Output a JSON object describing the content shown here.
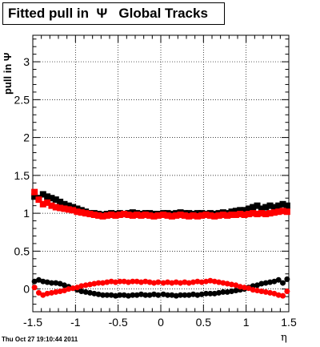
{
  "title": "Fitted pull in  Ψ   Global Tracks",
  "timestamp": "Thu Oct 27 19:10:44 2011",
  "chart_data": {
    "type": "scatter",
    "xlabel": "η",
    "ylabel": "pull in Ψ",
    "xlim": [
      -1.5,
      1.5
    ],
    "ylim": [
      -0.3,
      3.35
    ],
    "xticks": [
      "-1.5",
      "-1",
      "-0.5",
      "0",
      "0.5",
      "1",
      "1.5"
    ],
    "yticks": [
      "0",
      "0.5",
      "1",
      "1.5",
      "2",
      "2.5",
      "3"
    ],
    "grid": true,
    "series": [
      {
        "marker": "square",
        "color": "#000000",
        "x": [
          -1.48,
          -1.43,
          -1.38,
          -1.33,
          -1.28,
          -1.23,
          -1.18,
          -1.13,
          -1.08,
          -1.03,
          -0.98,
          -0.93,
          -0.88,
          -0.83,
          -0.78,
          -0.73,
          -0.68,
          -0.63,
          -0.58,
          -0.53,
          -0.48,
          -0.43,
          -0.38,
          -0.33,
          -0.28,
          -0.23,
          -0.18,
          -0.13,
          -0.08,
          -0.03,
          0.03,
          0.08,
          0.13,
          0.18,
          0.23,
          0.28,
          0.33,
          0.38,
          0.43,
          0.48,
          0.53,
          0.58,
          0.63,
          0.68,
          0.73,
          0.78,
          0.83,
          0.88,
          0.93,
          0.98,
          1.03,
          1.08,
          1.13,
          1.18,
          1.23,
          1.28,
          1.33,
          1.38,
          1.43,
          1.48
        ],
        "y": [
          1.22,
          1.2,
          1.25,
          1.22,
          1.2,
          1.18,
          1.15,
          1.12,
          1.1,
          1.08,
          1.06,
          1.04,
          1.02,
          1.0,
          1.0,
          0.99,
          0.98,
          0.99,
          1.0,
          0.99,
          1.0,
          0.99,
          1.0,
          1.01,
          1.0,
          0.99,
          1.0,
          1.0,
          0.99,
          0.99,
          1.0,
          1.0,
          0.99,
          1.0,
          1.01,
          1.0,
          1.0,
          0.99,
          1.0,
          1.0,
          0.99,
          1.0,
          0.99,
          1.0,
          1.01,
          1.0,
          1.02,
          1.03,
          1.04,
          1.04,
          1.06,
          1.08,
          1.1,
          1.06,
          1.08,
          1.1,
          1.08,
          1.1,
          1.12,
          1.1
        ]
      },
      {
        "marker": "square",
        "color": "#ff0000",
        "x": [
          -1.48,
          -1.43,
          -1.38,
          -1.33,
          -1.28,
          -1.23,
          -1.18,
          -1.13,
          -1.08,
          -1.03,
          -0.98,
          -0.93,
          -0.88,
          -0.83,
          -0.78,
          -0.73,
          -0.68,
          -0.63,
          -0.58,
          -0.53,
          -0.48,
          -0.43,
          -0.38,
          -0.33,
          -0.28,
          -0.23,
          -0.18,
          -0.13,
          -0.08,
          -0.03,
          0.03,
          0.08,
          0.13,
          0.18,
          0.23,
          0.28,
          0.33,
          0.38,
          0.43,
          0.48,
          0.53,
          0.58,
          0.63,
          0.68,
          0.73,
          0.78,
          0.83,
          0.88,
          0.93,
          0.98,
          1.03,
          1.08,
          1.13,
          1.18,
          1.23,
          1.28,
          1.33,
          1.38,
          1.43,
          1.48
        ],
        "y": [
          1.28,
          1.18,
          1.12,
          1.14,
          1.1,
          1.08,
          1.07,
          1.06,
          1.05,
          1.04,
          1.02,
          1.01,
          1.0,
          0.99,
          0.98,
          0.97,
          0.96,
          0.97,
          0.98,
          0.97,
          0.98,
          0.99,
          0.98,
          0.97,
          0.98,
          0.97,
          0.98,
          0.97,
          0.96,
          0.97,
          0.98,
          0.97,
          0.96,
          0.97,
          0.98,
          0.97,
          0.96,
          0.97,
          0.96,
          0.97,
          0.98,
          0.97,
          0.96,
          0.97,
          0.98,
          0.97,
          0.98,
          0.98,
          0.99,
          0.98,
          0.99,
          1.0,
          0.99,
          1.0,
          0.99,
          1.0,
          1.01,
          1.02,
          1.03,
          1.02
        ]
      },
      {
        "marker": "circle",
        "color": "#000000",
        "x": [
          -1.48,
          -1.43,
          -1.38,
          -1.33,
          -1.28,
          -1.23,
          -1.18,
          -1.13,
          -1.08,
          -1.03,
          -0.98,
          -0.93,
          -0.88,
          -0.83,
          -0.78,
          -0.73,
          -0.68,
          -0.63,
          -0.58,
          -0.53,
          -0.48,
          -0.43,
          -0.38,
          -0.33,
          -0.28,
          -0.23,
          -0.18,
          -0.13,
          -0.08,
          -0.03,
          0.03,
          0.08,
          0.13,
          0.18,
          0.23,
          0.28,
          0.33,
          0.38,
          0.43,
          0.48,
          0.53,
          0.58,
          0.63,
          0.68,
          0.73,
          0.78,
          0.83,
          0.88,
          0.93,
          0.98,
          1.03,
          1.08,
          1.13,
          1.18,
          1.23,
          1.28,
          1.33,
          1.38,
          1.43,
          1.48
        ],
        "y": [
          0.1,
          0.12,
          0.1,
          0.09,
          0.08,
          0.08,
          0.07,
          0.05,
          0.03,
          0.01,
          -0.01,
          -0.03,
          -0.04,
          -0.05,
          -0.06,
          -0.07,
          -0.08,
          -0.08,
          -0.08,
          -0.09,
          -0.08,
          -0.08,
          -0.09,
          -0.08,
          -0.08,
          -0.07,
          -0.08,
          -0.08,
          -0.07,
          -0.08,
          -0.07,
          -0.08,
          -0.08,
          -0.09,
          -0.08,
          -0.08,
          -0.08,
          -0.07,
          -0.08,
          -0.07,
          -0.06,
          -0.06,
          -0.06,
          -0.05,
          -0.04,
          -0.04,
          -0.03,
          -0.02,
          -0.01,
          0.0,
          0.02,
          0.04,
          0.05,
          0.07,
          0.08,
          0.09,
          0.1,
          0.12,
          0.08,
          0.13
        ]
      },
      {
        "marker": "circle",
        "color": "#ff0000",
        "x": [
          -1.48,
          -1.43,
          -1.38,
          -1.33,
          -1.28,
          -1.23,
          -1.18,
          -1.13,
          -1.08,
          -1.03,
          -0.98,
          -0.93,
          -0.88,
          -0.83,
          -0.78,
          -0.73,
          -0.68,
          -0.63,
          -0.58,
          -0.53,
          -0.48,
          -0.43,
          -0.38,
          -0.33,
          -0.28,
          -0.23,
          -0.18,
          -0.13,
          -0.08,
          -0.03,
          0.03,
          0.08,
          0.13,
          0.18,
          0.23,
          0.28,
          0.33,
          0.38,
          0.43,
          0.48,
          0.53,
          0.58,
          0.63,
          0.68,
          0.73,
          0.78,
          0.83,
          0.88,
          0.93,
          0.98,
          1.03,
          1.08,
          1.13,
          1.18,
          1.23,
          1.28,
          1.33,
          1.38,
          1.43,
          1.48
        ],
        "y": [
          0.02,
          -0.05,
          -0.08,
          -0.06,
          -0.05,
          -0.04,
          -0.03,
          -0.02,
          0.0,
          0.01,
          0.02,
          0.04,
          0.05,
          0.06,
          0.07,
          0.08,
          0.08,
          0.09,
          0.1,
          0.09,
          0.1,
          0.1,
          0.09,
          0.1,
          0.1,
          0.09,
          0.1,
          0.09,
          0.08,
          0.09,
          0.08,
          0.09,
          0.08,
          0.09,
          0.08,
          0.09,
          0.08,
          0.09,
          0.1,
          0.09,
          0.1,
          0.11,
          0.1,
          0.09,
          0.08,
          0.07,
          0.06,
          0.05,
          0.03,
          0.02,
          0.01,
          -0.01,
          -0.02,
          -0.03,
          -0.04,
          -0.05,
          -0.06,
          -0.08,
          -0.09,
          -0.03
        ]
      }
    ]
  }
}
